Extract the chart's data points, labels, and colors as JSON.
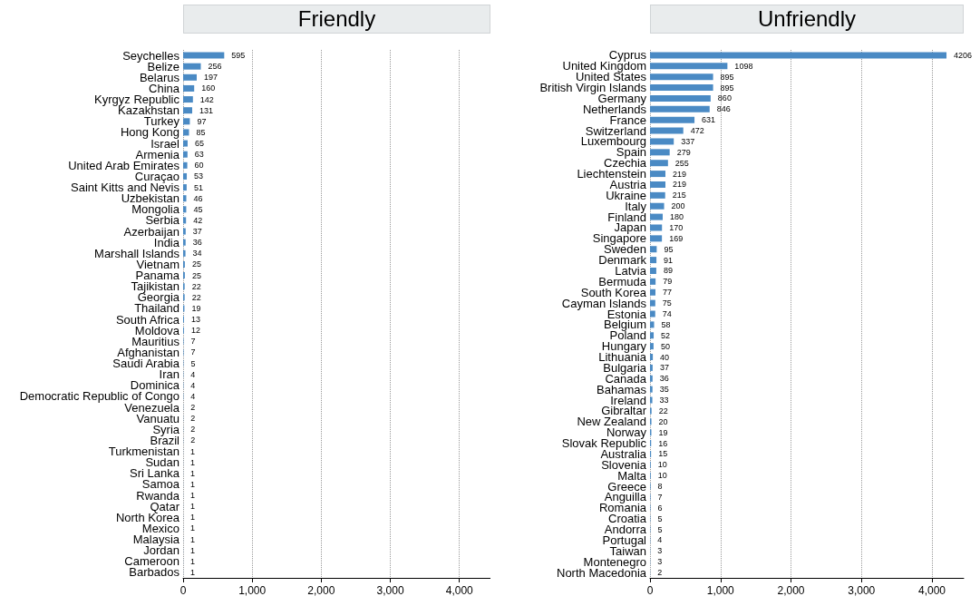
{
  "chart_data": [
    {
      "type": "bar",
      "orientation": "horizontal",
      "title": "Friendly",
      "color": "#4a8ac4",
      "data_labels": true,
      "grid": "x",
      "xlim": [
        0,
        4450
      ],
      "xticks": [
        0,
        {
          "value": 1000,
          "label": "1,000"
        },
        {
          "value": 2000,
          "label": "2,000"
        },
        {
          "value": 3000,
          "label": "3,000"
        },
        {
          "value": 4000,
          "label": "4,000"
        }
      ],
      "categories": [
        "Seychelles",
        "Belize",
        "Belarus",
        "China",
        "Kyrgyz Republic",
        "Kazakhstan",
        "Turkey",
        "Hong Kong",
        "Israel",
        "Armenia",
        "United Arab Emirates",
        "Curaçao",
        "Saint Kitts and Nevis",
        "Uzbekistan",
        "Mongolia",
        "Serbia",
        "Azerbaijan",
        "India",
        "Marshall Islands",
        "Vietnam",
        "Panama",
        "Tajikistan",
        "Georgia",
        "Thailand",
        "South Africa",
        "Moldova",
        "Mauritius",
        "Afghanistan",
        "Saudi Arabia",
        "Iran",
        "Dominica",
        "Democratic Republic of Congo",
        "Venezuela",
        "Vanuatu",
        "Syria",
        "Brazil",
        "Turkmenistan",
        "Sudan",
        "Sri Lanka",
        "Samoa",
        "Rwanda",
        "Qatar",
        "North Korea",
        "Mexico",
        "Malaysia",
        "Jordan",
        "Cameroon",
        "Barbados"
      ],
      "values": [
        595,
        256,
        197,
        160,
        142,
        131,
        97,
        85,
        65,
        63,
        60,
        53,
        51,
        46,
        45,
        42,
        37,
        36,
        34,
        25,
        25,
        22,
        22,
        19,
        13,
        12,
        7,
        7,
        5,
        4,
        4,
        4,
        2,
        2,
        2,
        2,
        1,
        1,
        1,
        1,
        1,
        1,
        1,
        1,
        1,
        1,
        1,
        1
      ]
    },
    {
      "type": "bar",
      "orientation": "horizontal",
      "title": "Unfriendly",
      "color": "#4a8ac4",
      "data_labels": true,
      "grid": "x",
      "xlim": [
        0,
        4450
      ],
      "xticks": [
        0,
        {
          "value": 1000,
          "label": "1,000"
        },
        {
          "value": 2000,
          "label": "2,000"
        },
        {
          "value": 3000,
          "label": "3,000"
        },
        {
          "value": 4000,
          "label": "4,000"
        }
      ],
      "categories": [
        "Cyprus",
        "United Kingdom",
        "United States",
        "British Virgin Islands",
        "Germany",
        "Netherlands",
        "France",
        "Switzerland",
        "Luxembourg",
        "Spain",
        "Czechia",
        "Liechtenstein",
        "Austria",
        "Ukraine",
        "Italy",
        "Finland",
        "Japan",
        "Singapore",
        "Sweden",
        "Denmark",
        "Latvia",
        "Bermuda",
        "South Korea",
        "Cayman Islands",
        "Estonia",
        "Belgium",
        "Poland",
        "Hungary",
        "Lithuania",
        "Bulgaria",
        "Canada",
        "Bahamas",
        "Ireland",
        "Gibraltar",
        "New Zealand",
        "Norway",
        "Slovak Republic",
        "Australia",
        "Slovenia",
        "Malta",
        "Greece",
        "Anguilla",
        "Romania",
        "Croatia",
        "Andorra",
        "Portugal",
        "Taiwan",
        "Montenegro",
        "North Macedonia"
      ],
      "values": [
        4206,
        1098,
        895,
        895,
        860,
        846,
        631,
        472,
        337,
        279,
        255,
        219,
        219,
        215,
        200,
        180,
        170,
        169,
        95,
        91,
        89,
        79,
        77,
        75,
        74,
        58,
        52,
        50,
        40,
        37,
        36,
        35,
        33,
        22,
        20,
        19,
        16,
        15,
        10,
        10,
        8,
        7,
        6,
        5,
        5,
        4,
        3,
        3,
        2
      ]
    }
  ]
}
